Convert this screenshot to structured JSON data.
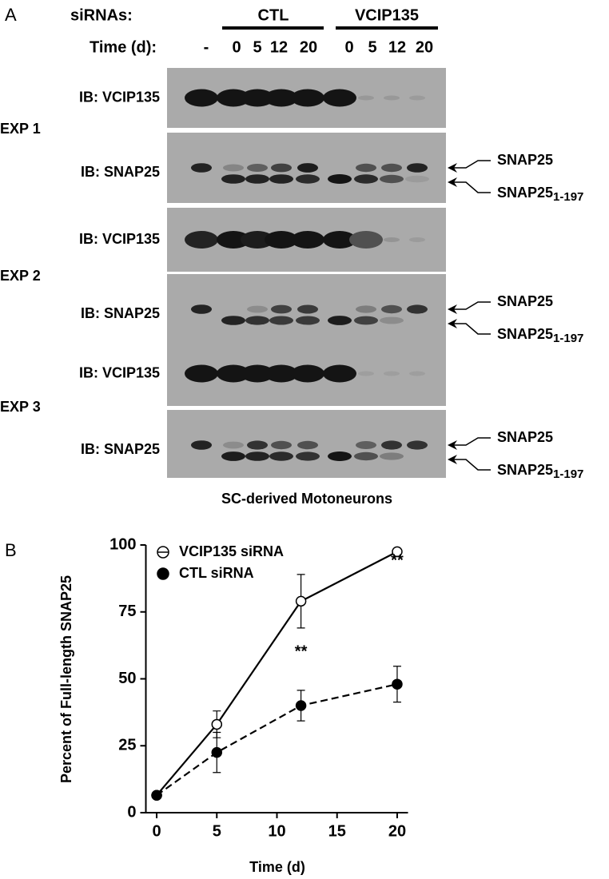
{
  "panel_a": {
    "label": "A",
    "siRNAs_label": "siRNAs:",
    "groups": [
      "CTL",
      "VCIP135"
    ],
    "time_label": "Time (d):",
    "lanes": [
      "-",
      "0",
      "5",
      "12",
      "20",
      "0",
      "5",
      "12",
      "20"
    ],
    "experiments": [
      {
        "name": "EXP 1",
        "blots": [
          "IB: VCIP135",
          "IB: SNAP25"
        ]
      },
      {
        "name": "EXP 2",
        "blots": [
          "IB: VCIP135",
          "IB: SNAP25"
        ]
      },
      {
        "name": "EXP 3",
        "blots": [
          "IB: VCIP135",
          "IB: SNAP25"
        ]
      }
    ],
    "band_labels": {
      "full": "SNAP25",
      "cleaved": "SNAP25",
      "cleaved_subscript": "1-197"
    },
    "caption": "SC-derived Motoneurons"
  },
  "chart_data": {
    "type": "line",
    "panel_label": "B",
    "x_label": "Time (d)",
    "y_label": "Percent of Full-length SNAP25",
    "x": [
      0,
      5,
      12,
      20
    ],
    "series": [
      {
        "name": "VCIP135 siRNA",
        "color": "#000000",
        "marker": "open",
        "line": "solid",
        "values": [
          6.5,
          33,
          79,
          97.5
        ],
        "errors": [
          1,
          5,
          10,
          0.5
        ]
      },
      {
        "name": "CTL siRNA",
        "color": "#000000",
        "marker": "filled",
        "line": "dashed",
        "values": [
          6.5,
          22.5,
          40,
          48
        ],
        "errors": [
          1,
          7.5,
          5.7,
          6.7
        ]
      }
    ],
    "annotations": [
      {
        "text": "**",
        "x": 12,
        "y": 60
      },
      {
        "text": "**",
        "x": 20,
        "y": 94
      }
    ],
    "xlim": [
      -0.9,
      20.9
    ],
    "ylim": [
      0,
      100
    ],
    "xticks": [
      0,
      5,
      10,
      15,
      20
    ],
    "yticks": [
      0,
      25,
      50,
      75,
      100
    ],
    "legend": "upper left"
  }
}
